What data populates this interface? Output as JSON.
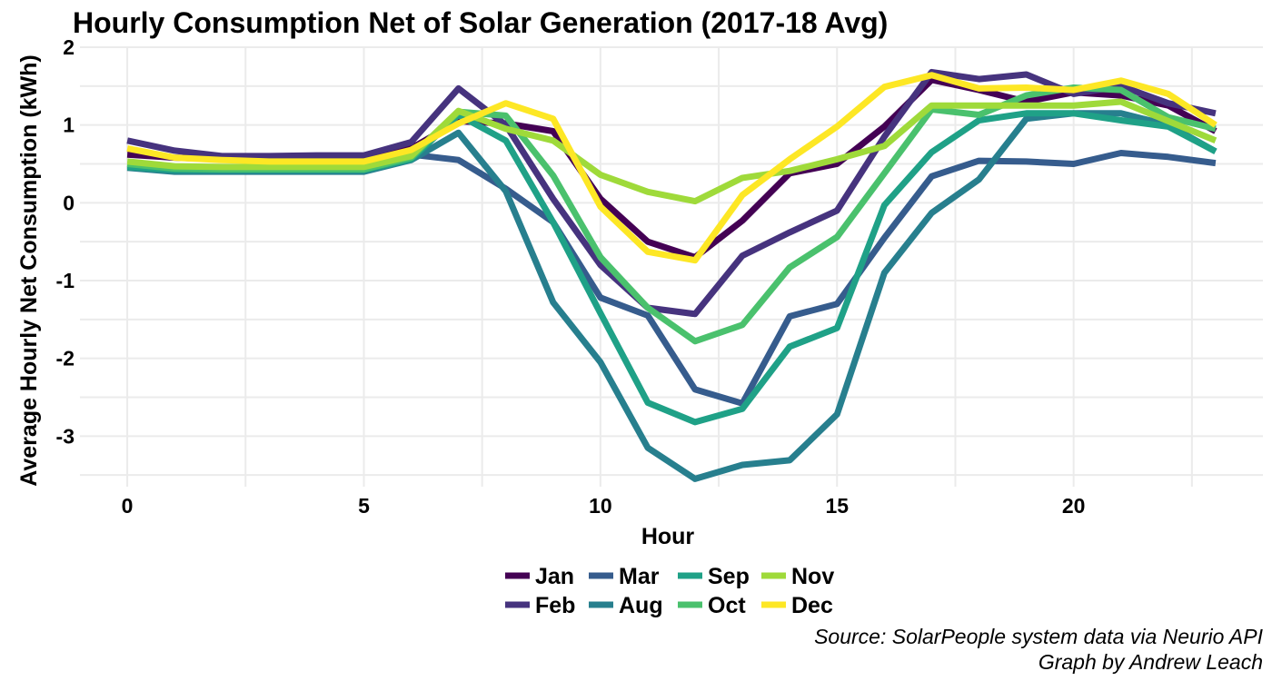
{
  "chart_data": {
    "type": "line",
    "title": "Hourly Consumption Net of Solar Generation (2017-18 Avg)",
    "xlabel": "Hour",
    "ylabel": "Average Hourly Net Consumption (kWh)",
    "xlim": [
      -1,
      24
    ],
    "ylim": [
      -3.65,
      2.0
    ],
    "x_ticks": [
      0,
      5,
      10,
      15,
      20
    ],
    "x_tick_labels": [
      "0",
      "5",
      "10",
      "15",
      "20"
    ],
    "y_ticks": [
      2,
      1,
      0,
      -1,
      -2,
      -3
    ],
    "y_tick_labels": [
      "2",
      "1",
      "0",
      "-1",
      "-2",
      "-3"
    ],
    "grid": true,
    "legend_position": "bottom",
    "x": [
      0,
      1,
      2,
      3,
      4,
      5,
      6,
      7,
      8,
      9,
      10,
      11,
      12,
      13,
      14,
      15,
      16,
      17,
      18,
      19,
      20,
      21,
      22,
      23
    ],
    "series": [
      {
        "name": "Jan",
        "color": "#440154",
        "values": [
          0.62,
          0.58,
          0.56,
          0.55,
          0.56,
          0.57,
          0.7,
          1.05,
          1.02,
          0.92,
          0.05,
          -0.5,
          -0.7,
          -0.23,
          0.38,
          0.5,
          0.98,
          1.58,
          1.45,
          1.3,
          1.42,
          1.38,
          1.25,
          0.92
        ]
      },
      {
        "name": "Feb",
        "color": "#46337E",
        "values": [
          0.8,
          0.67,
          0.6,
          0.6,
          0.61,
          0.61,
          0.78,
          1.47,
          1.0,
          0.05,
          -0.8,
          -1.35,
          -1.43,
          -0.68,
          -0.38,
          -0.1,
          0.85,
          1.68,
          1.59,
          1.65,
          1.4,
          1.5,
          1.28,
          1.15
        ]
      },
      {
        "name": "Mar",
        "color": "#365C8D",
        "values": [
          0.48,
          0.42,
          0.41,
          0.41,
          0.41,
          0.41,
          0.62,
          0.55,
          0.18,
          -0.25,
          -1.22,
          -1.45,
          -2.4,
          -2.58,
          -1.46,
          -1.3,
          -0.45,
          0.34,
          0.54,
          0.53,
          0.5,
          0.64,
          0.59,
          0.51
        ]
      },
      {
        "name": "Aug",
        "color": "#277F8E",
        "values": [
          0.45,
          0.4,
          0.4,
          0.4,
          0.4,
          0.4,
          0.55,
          0.9,
          0.15,
          -1.28,
          -2.05,
          -3.15,
          -3.55,
          -3.37,
          -3.31,
          -2.72,
          -0.9,
          -0.13,
          0.3,
          1.08,
          1.15,
          1.15,
          1.0,
          0.66
        ]
      },
      {
        "name": "Sep",
        "color": "#1FA187",
        "values": [
          0.46,
          0.42,
          0.42,
          0.42,
          0.42,
          0.42,
          0.56,
          1.13,
          0.8,
          -0.25,
          -1.42,
          -2.57,
          -2.82,
          -2.65,
          -1.85,
          -1.61,
          -0.03,
          0.65,
          1.06,
          1.15,
          1.15,
          1.06,
          0.98,
          0.66
        ]
      },
      {
        "name": "Oct",
        "color": "#4AC16D",
        "values": [
          0.5,
          0.44,
          0.43,
          0.43,
          0.43,
          0.43,
          0.58,
          1.17,
          1.12,
          0.35,
          -0.7,
          -1.35,
          -1.78,
          -1.57,
          -0.83,
          -0.44,
          0.38,
          1.2,
          1.13,
          1.38,
          1.48,
          1.45,
          1.1,
          0.95
        ]
      },
      {
        "name": "Nov",
        "color": "#9FDA3A",
        "values": [
          0.53,
          0.47,
          0.46,
          0.46,
          0.46,
          0.46,
          0.6,
          1.18,
          0.95,
          0.8,
          0.36,
          0.14,
          0.02,
          0.32,
          0.41,
          0.56,
          0.73,
          1.25,
          1.25,
          1.25,
          1.25,
          1.3,
          1.05,
          0.8
        ]
      },
      {
        "name": "Dec",
        "color": "#FDE725",
        "values": [
          0.7,
          0.58,
          0.55,
          0.53,
          0.53,
          0.53,
          0.68,
          1.02,
          1.28,
          1.08,
          -0.05,
          -0.63,
          -0.74,
          0.1,
          0.56,
          0.98,
          1.49,
          1.64,
          1.47,
          1.48,
          1.45,
          1.57,
          1.4,
          1.0
        ]
      }
    ],
    "legend_order": [
      "Jan",
      "Feb",
      "Mar",
      "Aug",
      "Sep",
      "Oct",
      "Nov",
      "Dec"
    ]
  },
  "caption": {
    "line1": "Source: SolarPeople system data via Neurio API",
    "line2": "Graph by Andrew Leach"
  }
}
